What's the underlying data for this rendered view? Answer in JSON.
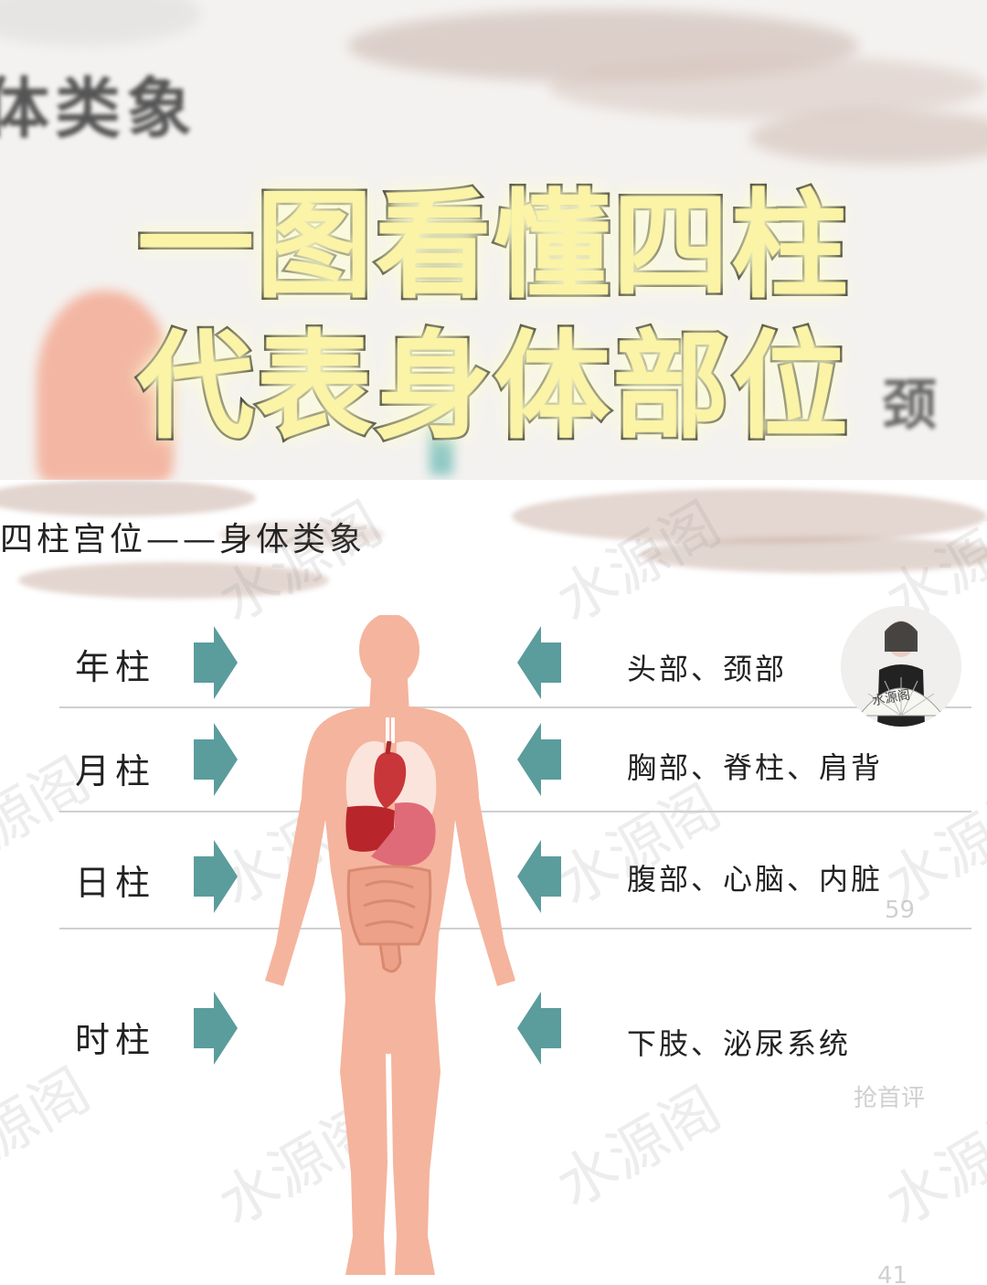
{
  "banner": {
    "blurred_title": "体类象",
    "headline_line1": "一图看懂四柱",
    "headline_line2": "代表身体部位",
    "blurred_side": "颈"
  },
  "slide": {
    "title": "四柱宫位——身体类象",
    "rows": [
      {
        "pillar": "年柱",
        "body_parts": "头部、颈部"
      },
      {
        "pillar": "月柱",
        "body_parts": "胸部、脊柱、肩背"
      },
      {
        "pillar": "日柱",
        "body_parts": "腹部、心脑、内脏"
      },
      {
        "pillar": "时柱",
        "body_parts": "下肢、泌尿系统"
      }
    ],
    "watermark": "水源阁",
    "side_counts": {
      "likes": "59",
      "comment_prompt": "抢首评",
      "shares": "41"
    }
  },
  "avatar_fan_text": "水源阁",
  "colors": {
    "arrow": "#5b9c9c",
    "body": "#f5b49d",
    "headline_fill": "#fbf3a6"
  }
}
